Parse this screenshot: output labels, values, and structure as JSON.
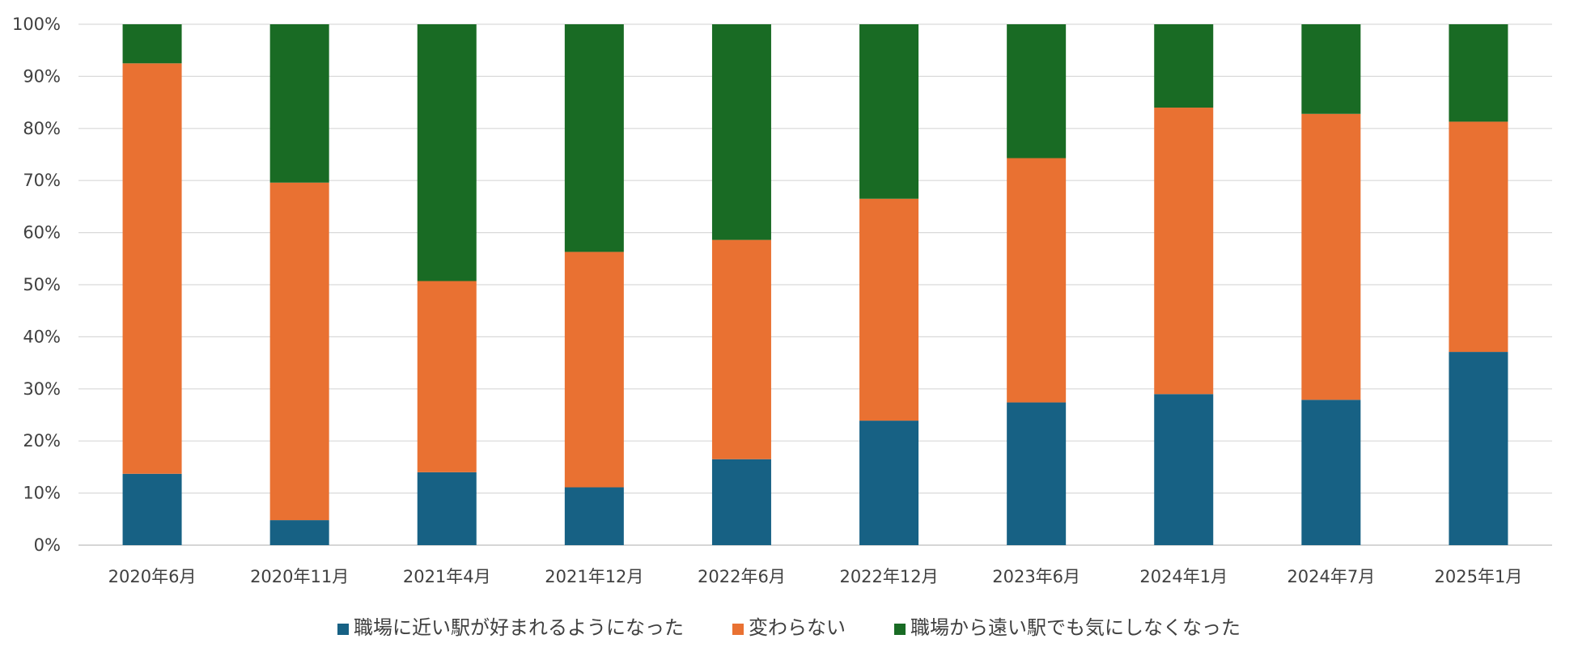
{
  "chart_data": {
    "type": "bar",
    "stacked": true,
    "percent": true,
    "categories": [
      "2020年6月",
      "2020年11月",
      "2021年4月",
      "2021年12月",
      "2022年6月",
      "2022年12月",
      "2023年6月",
      "2024年1月",
      "2024年7月",
      "2025年1月"
    ],
    "series": [
      {
        "name": "職場に近い駅が好まれるようになった",
        "color": "#176184",
        "values": [
          13.7,
          4.8,
          14.0,
          11.1,
          16.5,
          23.9,
          27.4,
          29.0,
          27.9,
          37.1
        ]
      },
      {
        "name": "変わらない",
        "color": "#E97132",
        "values": [
          78.8,
          64.8,
          36.7,
          45.2,
          42.1,
          42.6,
          46.9,
          55.0,
          54.9,
          44.2
        ]
      },
      {
        "name": "職場から遠い駅でも気にしなくなった",
        "color": "#196B24",
        "values": [
          7.5,
          30.4,
          49.3,
          43.7,
          41.4,
          33.5,
          25.7,
          16.0,
          17.2,
          18.7
        ]
      }
    ],
    "ylim": [
      0,
      100
    ],
    "y_ticks": [
      "0%",
      "10%",
      "20%",
      "30%",
      "40%",
      "50%",
      "60%",
      "70%",
      "80%",
      "90%",
      "100%"
    ],
    "grid": true,
    "legend_position": "bottom",
    "title": "",
    "xlabel": "",
    "ylabel": ""
  }
}
